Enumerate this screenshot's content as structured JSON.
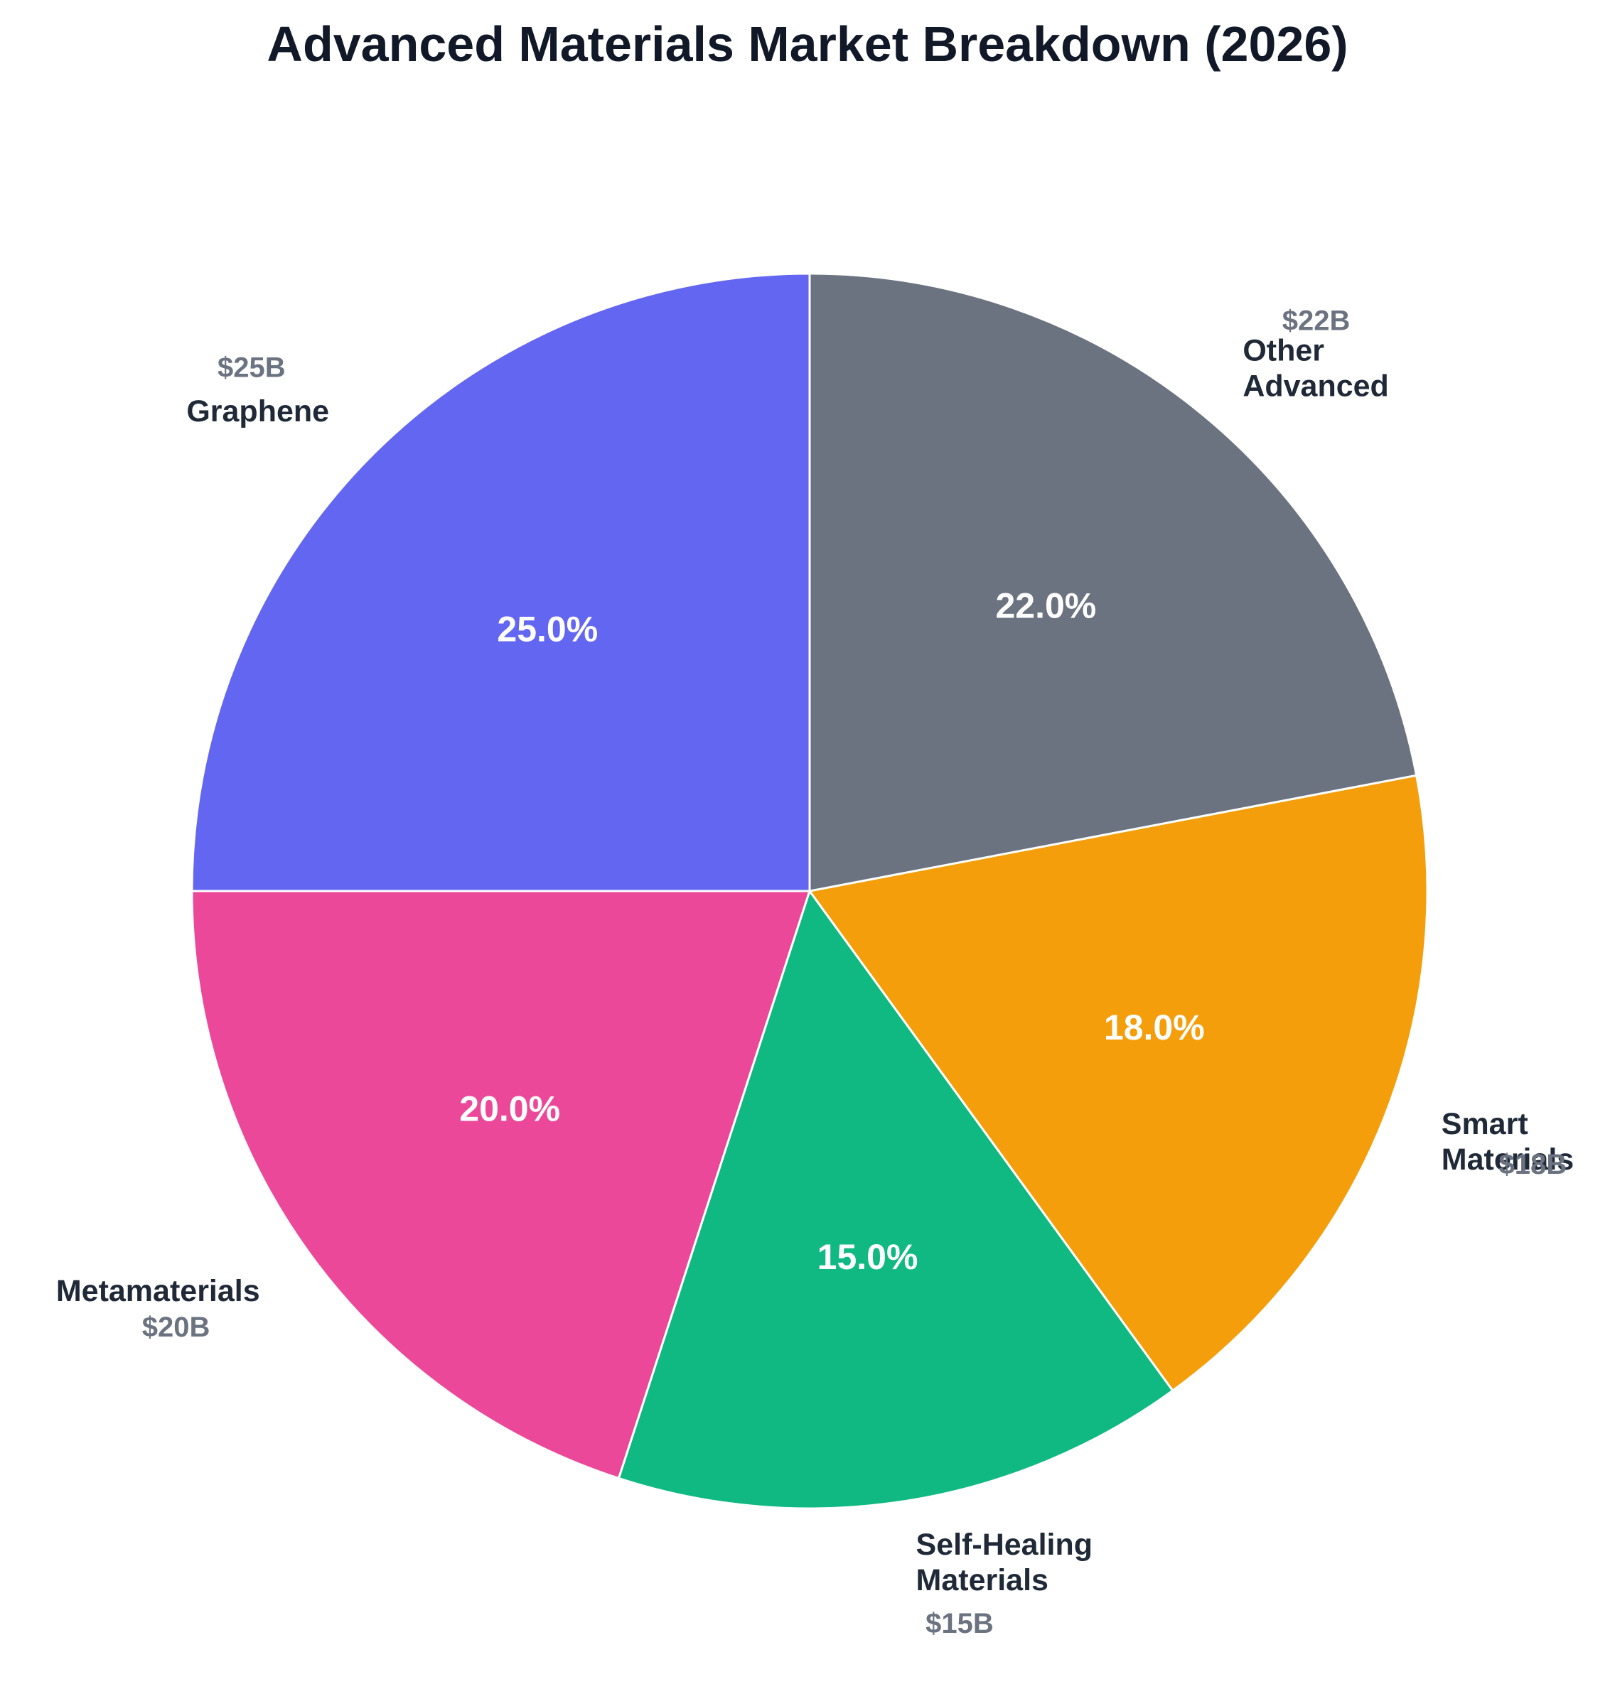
{
  "chart_data": {
    "type": "pie",
    "title": "Advanced Materials Market Breakdown (2026)",
    "categories": [
      "Graphene",
      "Metamaterials",
      "Self-Healing Materials",
      "Smart Materials",
      "Other Advanced"
    ],
    "values": [
      25,
      20,
      15,
      18,
      22
    ],
    "percent_labels": [
      "25.0%",
      "20.0%",
      "15.0%",
      "18.0%",
      "22.0%"
    ],
    "value_labels": [
      "$25B",
      "$20B",
      "$15B",
      "$18B",
      "$22B"
    ],
    "unit": "USD billions",
    "colors": [
      "#6366f1",
      "#ec4899",
      "#10b981",
      "#f59e0b",
      "#6b7280"
    ],
    "start_angle": 90,
    "direction": "counterclockwise",
    "legend": "none"
  },
  "title": "Advanced Materials Market Breakdown (2026)",
  "slices": [
    {
      "label_lines": [
        "Graphene"
      ],
      "pct": "25.0%",
      "value": "$25B",
      "color": "#6366f1"
    },
    {
      "label_lines": [
        "Metamaterials"
      ],
      "pct": "20.0%",
      "value": "$20B",
      "color": "#ec4899"
    },
    {
      "label_lines": [
        "Self-Healing",
        "Materials"
      ],
      "pct": "15.0%",
      "value": "$15B",
      "color": "#10b981"
    },
    {
      "label_lines": [
        "Smart",
        "Materials"
      ],
      "pct": "18.0%",
      "value": "$18B",
      "color": "#f59e0b"
    },
    {
      "label_lines": [
        "Other",
        "Advanced"
      ],
      "pct": "22.0%",
      "value": "$22B",
      "color": "#6b7280"
    }
  ]
}
